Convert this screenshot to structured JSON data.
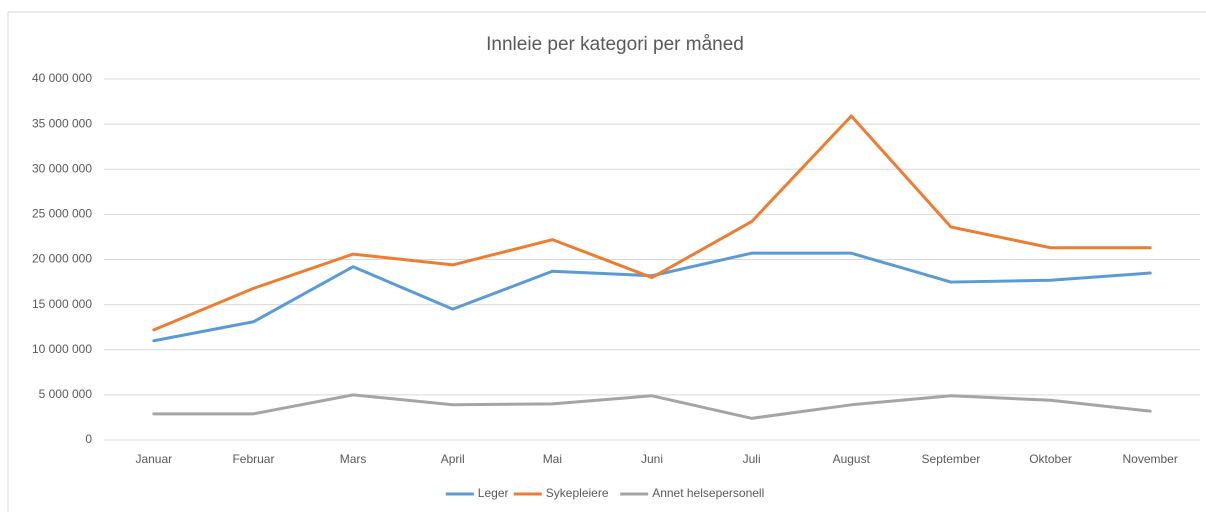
{
  "chart_data": {
    "type": "line",
    "title": "Innleie per kategori per måned",
    "categories": [
      "Januar",
      "Februar",
      "Mars",
      "April",
      "Mai",
      "Juni",
      "Juli",
      "August",
      "September",
      "Oktober",
      "November"
    ],
    "series": [
      {
        "name": "Leger",
        "color": "#5b9bd5",
        "values": [
          11000000,
          13100000,
          19200000,
          14500000,
          18700000,
          18200000,
          20700000,
          20700000,
          17500000,
          17700000,
          18500000
        ]
      },
      {
        "name": "Sykepleiere",
        "color": "#ed7d31",
        "values": [
          12200000,
          16800000,
          20600000,
          19400000,
          22200000,
          18000000,
          24200000,
          35900000,
          23600000,
          21300000,
          21300000
        ]
      },
      {
        "name": "Annet helsepersonell",
        "color": "#a5a5a5",
        "values": [
          2900000,
          2900000,
          5000000,
          3900000,
          4000000,
          4900000,
          2400000,
          3900000,
          4900000,
          4400000,
          3200000
        ]
      }
    ],
    "ylim": [
      0,
      40000000
    ],
    "yticks": [
      0,
      {
        "value": 5000000,
        "label": "5 000 000"
      },
      {
        "value": 10000000,
        "label": "10 000 000"
      },
      {
        "value": 15000000,
        "label": "15 000 000"
      },
      {
        "value": 20000000,
        "label": "20 000 000"
      },
      {
        "value": 25000000,
        "label": "25 000 000"
      },
      {
        "value": 30000000,
        "label": "30 000 000"
      },
      {
        "value": 35000000,
        "label": "35 000 000"
      },
      {
        "value": 40000000,
        "label": "40 000 000"
      }
    ],
    "grid": true,
    "legend": "bottom"
  }
}
